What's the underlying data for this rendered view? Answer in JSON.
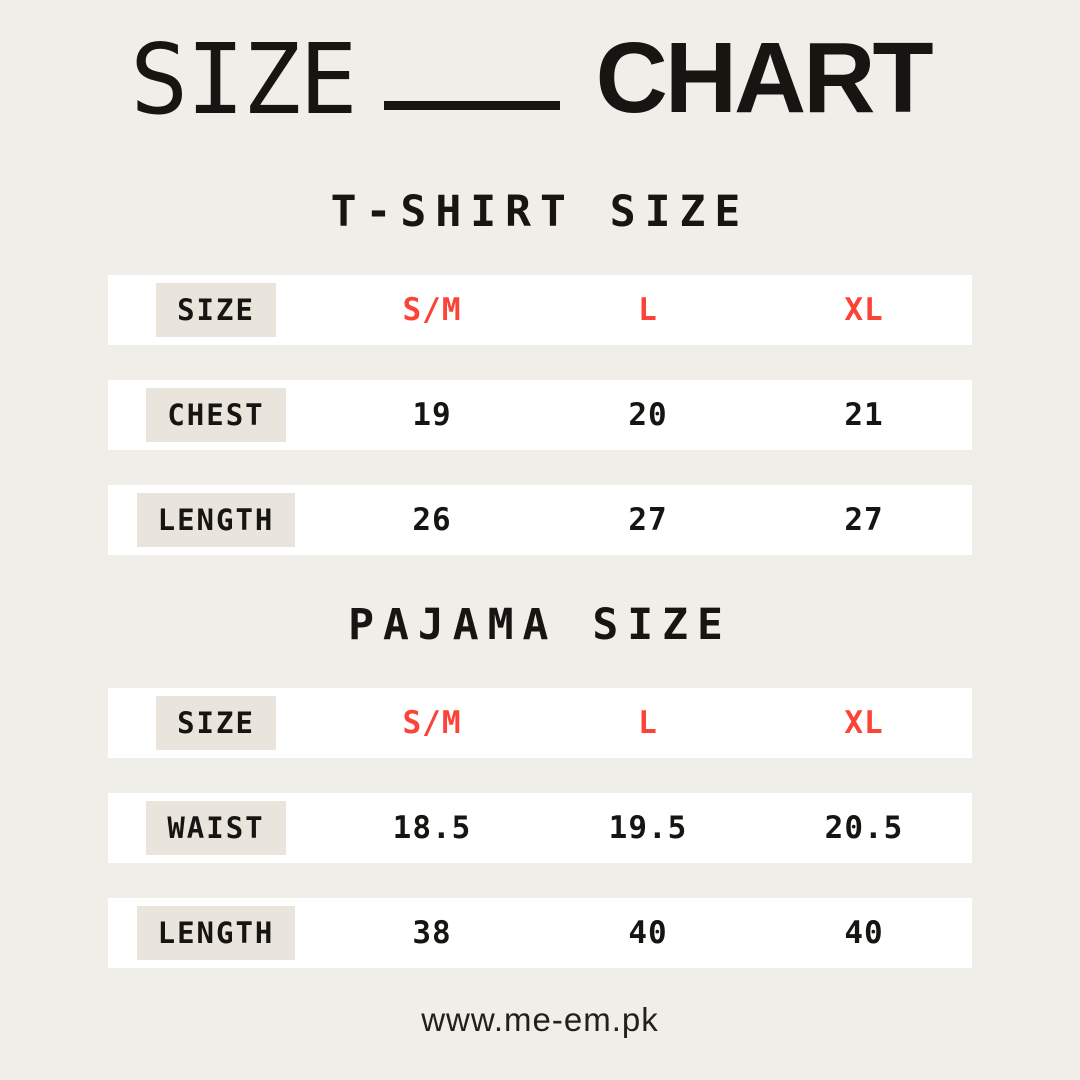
{
  "page": {
    "colors": {
      "bg": "#efeee9",
      "row-bg": "#ffffff",
      "label-bg": "#e9e5dc",
      "ink": "#171512",
      "red": "#fb4338"
    }
  },
  "title": {
    "light": "SIZE",
    "bold": "CHART"
  },
  "tables": [
    {
      "heading": "T-SHIRT SIZE",
      "rows": [
        {
          "label": "SIZE",
          "values": [
            "S/M",
            "L",
            "XL"
          ],
          "highlight": true
        },
        {
          "label": "CHEST",
          "values": [
            "19",
            "20",
            "21"
          ],
          "highlight": false
        },
        {
          "label": "LENGTH",
          "values": [
            "26",
            "27",
            "27"
          ],
          "highlight": false
        }
      ]
    },
    {
      "heading": "PAJAMA SIZE",
      "rows": [
        {
          "label": "SIZE",
          "values": [
            "S/M",
            "L",
            "XL"
          ],
          "highlight": true
        },
        {
          "label": "WAIST",
          "values": [
            "18.5",
            "19.5",
            "20.5"
          ],
          "highlight": false
        },
        {
          "label": "LENGTH",
          "values": [
            "38",
            "40",
            "40"
          ],
          "highlight": false
        }
      ]
    }
  ],
  "footer": {
    "website": "www.me-em.pk"
  },
  "chart_data": [
    {
      "type": "table",
      "title": "T-SHIRT SIZE",
      "columns": [
        "SIZE",
        "S/M",
        "L",
        "XL"
      ],
      "rows": [
        [
          "CHEST",
          19,
          20,
          21
        ],
        [
          "LENGTH",
          26,
          27,
          27
        ]
      ]
    },
    {
      "type": "table",
      "title": "PAJAMA SIZE",
      "columns": [
        "SIZE",
        "S/M",
        "L",
        "XL"
      ],
      "rows": [
        [
          "WAIST",
          18.5,
          19.5,
          20.5
        ],
        [
          "LENGTH",
          38,
          40,
          40
        ]
      ]
    }
  ]
}
